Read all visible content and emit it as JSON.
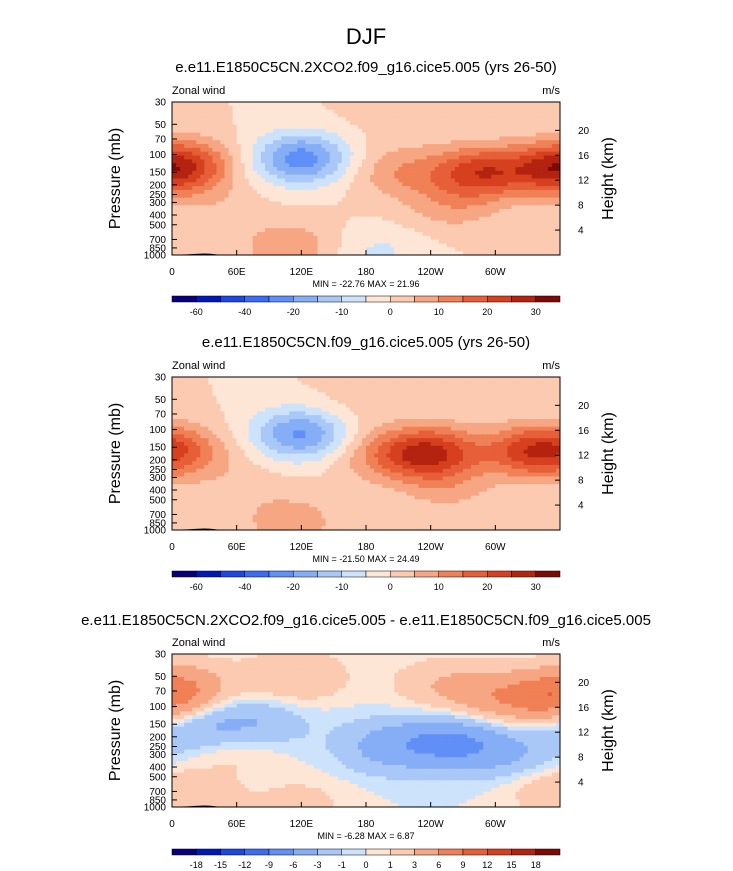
{
  "page_title": "DJF",
  "colorbar_bins_main": [
    "#08007a",
    "#0018b8",
    "#1e46e0",
    "#3b6df2",
    "#5f8ff7",
    "#86aef6",
    "#a9c8f7",
    "#cde2fb",
    "#fde6d6",
    "#fbcab0",
    "#f7a683",
    "#f08055",
    "#e65f38",
    "#d6401e",
    "#b3230f",
    "#7d0b05"
  ],
  "colorbar_labels_main": [
    "-60",
    "-40",
    "-20",
    "-10",
    "0",
    "10",
    "20",
    "30"
  ],
  "colorbar_labels_diff": [
    "-18",
    "-15",
    "-12",
    "-9",
    "-6",
    "-3",
    "-1",
    "0",
    "1",
    "3",
    "6",
    "9",
    "12",
    "15",
    "18"
  ],
  "chart_data": [
    {
      "type": "heatmap",
      "title": "e.e11.E1850C5CN.2XCO2.f09_g16.cice5.005 (yrs 26-50)",
      "left_label": "Zonal wind",
      "right_label": "m/s",
      "ylabel": "Pressure (mb)",
      "ylabel_right": "Height (km)",
      "x_ticks": [
        "0",
        "60E",
        "120E",
        "180",
        "120W",
        "60W"
      ],
      "x_tick_values": [
        0,
        60,
        120,
        180,
        240,
        300
      ],
      "xlim": [
        0,
        360
      ],
      "y_ticks": [
        "30",
        "50",
        "70",
        "100",
        "150",
        "200",
        "250",
        "300",
        "400",
        "500",
        "700",
        "850",
        "1000"
      ],
      "y_tick_values": [
        30,
        50,
        70,
        100,
        150,
        200,
        250,
        300,
        400,
        500,
        700,
        850,
        1000
      ],
      "ylim": [
        1000,
        30
      ],
      "height_ticks": [
        "20",
        "16",
        "12",
        "8",
        "4"
      ],
      "height_tick_values": [
        20,
        16,
        12,
        8,
        4
      ],
      "min_max": "MIN = -22.76  MAX = 21.96",
      "min": -22.76,
      "max": 21.96,
      "levels": [
        -70,
        -60,
        -50,
        -40,
        -30,
        -20,
        -15,
        -10,
        -5,
        0,
        5,
        10,
        15,
        20,
        25,
        30,
        35
      ],
      "features": [
        {
          "lon": 285,
          "p": 150,
          "value": 21.96
        },
        {
          "lon": 355,
          "p": 140,
          "value": 19
        },
        {
          "lon": 15,
          "p": 125,
          "value": 12
        },
        {
          "lon": 120,
          "p": 110,
          "value": -22.76
        },
        {
          "lon": 110,
          "p": 830,
          "value": 9
        },
        {
          "lon": 210,
          "p": 150,
          "value": 9
        },
        {
          "lon": 260,
          "p": 330,
          "value": 7
        },
        {
          "lon": 40,
          "p": 330,
          "value": 3
        },
        {
          "lon": 190,
          "p": 930,
          "value": -6
        },
        {
          "lon": 200,
          "p": 45,
          "value": 2
        }
      ]
    },
    {
      "type": "heatmap",
      "title": "e.e11.E1850C5CN.f09_g16.cice5.005 (yrs 26-50)",
      "left_label": "Zonal wind",
      "right_label": "m/s",
      "ylabel": "Pressure (mb)",
      "ylabel_right": "Height (km)",
      "x_ticks": [
        "0",
        "60E",
        "120E",
        "180",
        "120W",
        "60W"
      ],
      "x_tick_values": [
        0,
        60,
        120,
        180,
        240,
        300
      ],
      "xlim": [
        0,
        360
      ],
      "y_ticks": [
        "30",
        "50",
        "70",
        "100",
        "150",
        "200",
        "250",
        "300",
        "400",
        "500",
        "700",
        "850",
        "1000"
      ],
      "y_tick_values": [
        30,
        50,
        70,
        100,
        150,
        200,
        250,
        300,
        400,
        500,
        700,
        850,
        1000
      ],
      "ylim": [
        1000,
        30
      ],
      "height_ticks": [
        "20",
        "16",
        "12",
        "8",
        "4"
      ],
      "height_tick_values": [
        20,
        16,
        12,
        8,
        4
      ],
      "min_max": "MIN = -21.50  MAX = 24.49",
      "min": -21.5,
      "max": 24.49,
      "levels": [
        -70,
        -60,
        -50,
        -40,
        -30,
        -20,
        -15,
        -10,
        -5,
        0,
        5,
        10,
        15,
        20,
        25,
        30,
        35
      ],
      "features": [
        {
          "lon": 240,
          "p": 170,
          "value": 24.49
        },
        {
          "lon": 335,
          "p": 165,
          "value": 21
        },
        {
          "lon": 10,
          "p": 160,
          "value": 10
        },
        {
          "lon": 120,
          "p": 110,
          "value": -21.5
        },
        {
          "lon": 110,
          "p": 820,
          "value": 8
        },
        {
          "lon": 195,
          "p": 180,
          "value": 9
        },
        {
          "lon": 255,
          "p": 380,
          "value": 6
        },
        {
          "lon": 60,
          "p": 350,
          "value": 3
        },
        {
          "lon": 160,
          "p": 65,
          "value": 3
        }
      ]
    },
    {
      "type": "heatmap",
      "title": "e.e11.E1850C5CN.2XCO2.f09_g16.cice5.005 - e.e11.E1850C5CN.f09_g16.cice5.005",
      "left_label": "Zonal wind",
      "right_label": "m/s",
      "ylabel": "Pressure (mb)",
      "ylabel_right": "Height (km)",
      "x_ticks": [
        "0",
        "60E",
        "120E",
        "180",
        "120W",
        "60W"
      ],
      "x_tick_values": [
        0,
        60,
        120,
        180,
        240,
        300
      ],
      "xlim": [
        0,
        360
      ],
      "y_ticks": [
        "30",
        "50",
        "70",
        "100",
        "150",
        "200",
        "250",
        "300",
        "400",
        "500",
        "700",
        "850",
        "1000"
      ],
      "y_tick_values": [
        30,
        50,
        70,
        100,
        150,
        200,
        250,
        300,
        400,
        500,
        700,
        850,
        1000
      ],
      "ylim": [
        1000,
        30
      ],
      "height_ticks": [
        "20",
        "16",
        "12",
        "8",
        "4"
      ],
      "height_tick_values": [
        20,
        16,
        12,
        8,
        4
      ],
      "min_max": "MIN = -6.28  MAX = 6.87",
      "min": -6.28,
      "max": 6.87,
      "levels": [
        -21,
        -18,
        -15,
        -12,
        -9,
        -6,
        -3,
        -1,
        0,
        1,
        3,
        6,
        9,
        12,
        15,
        18,
        21
      ],
      "features": [
        {
          "lon": 355,
          "p": 85,
          "value": 6.87
        },
        {
          "lon": 300,
          "p": 80,
          "value": 4
        },
        {
          "lon": 115,
          "p": 50,
          "value": 3
        },
        {
          "lon": 15,
          "p": 60,
          "value": 3
        },
        {
          "lon": 250,
          "p": 60,
          "value": 2.5
        },
        {
          "lon": 260,
          "p": 230,
          "value": -6.28
        },
        {
          "lon": 200,
          "p": 250,
          "value": -4
        },
        {
          "lon": 25,
          "p": 150,
          "value": -4
        },
        {
          "lon": 80,
          "p": 155,
          "value": -3
        },
        {
          "lon": 315,
          "p": 300,
          "value": -3
        },
        {
          "lon": 60,
          "p": 250,
          "value": 2
        },
        {
          "lon": 20,
          "p": 850,
          "value": 2
        },
        {
          "lon": 120,
          "p": 900,
          "value": 1.5
        },
        {
          "lon": 345,
          "p": 600,
          "value": 1.5
        }
      ]
    }
  ]
}
